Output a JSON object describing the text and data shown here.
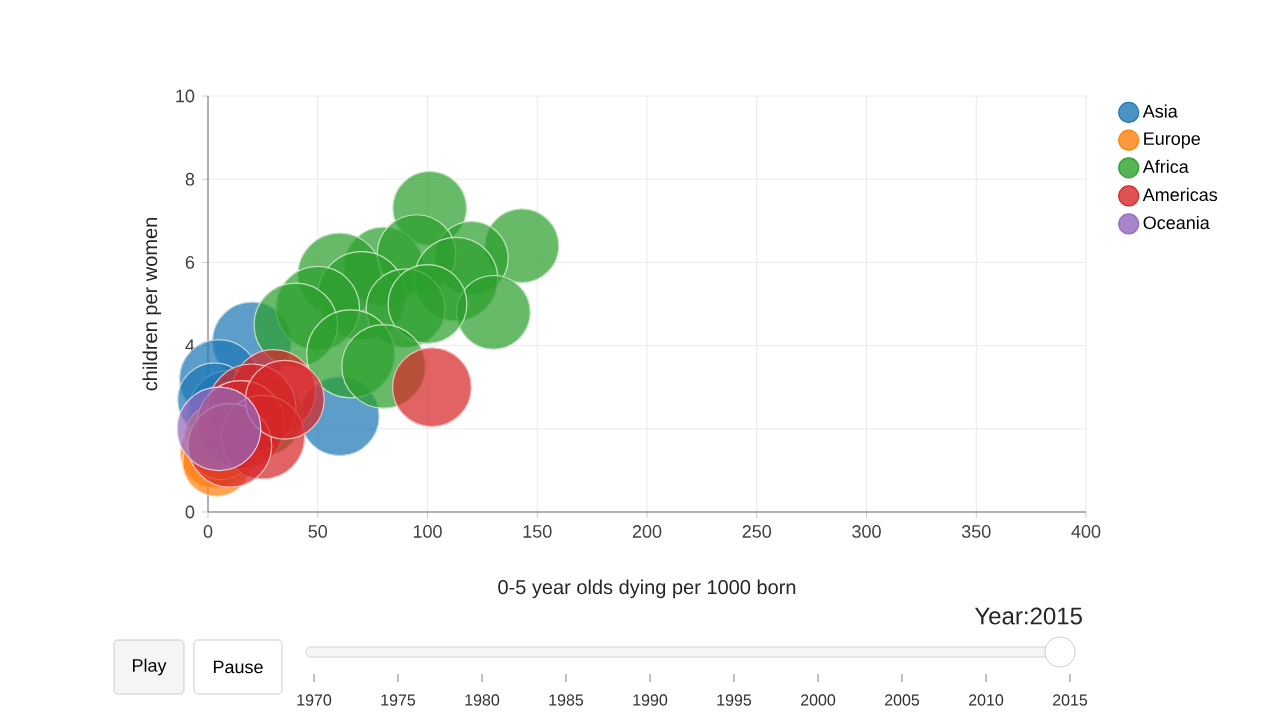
{
  "chart_data": {
    "type": "bubble",
    "xlabel": "0-5 year olds dying per 1000 born",
    "ylabel": "children per women",
    "xlim": [
      0,
      400
    ],
    "xticks": [
      0,
      50,
      100,
      150,
      200,
      250,
      300,
      350,
      400
    ],
    "ylim": [
      0,
      10
    ],
    "yticks": [
      0,
      2,
      4,
      6,
      8,
      10
    ],
    "grid": true,
    "legend": "top right",
    "marker": "circle",
    "series": [
      {
        "name": "Asia",
        "color": "#1f77b4",
        "x": [
          20,
          5,
          60,
          10,
          3
        ],
        "values": [
          4.1,
          3.2,
          2.3,
          2.4,
          2.7
        ],
        "sizes": [
          0.8,
          0.8,
          0.8,
          0.9,
          0.7
        ]
      },
      {
        "name": "Europe",
        "color": "#ff7f0e",
        "x": [
          3,
          5,
          4,
          6
        ],
        "values": [
          1.4,
          1.8,
          1.2,
          1.6
        ],
        "sizes": [
          0.6,
          0.6,
          0.6,
          0.6
        ]
      },
      {
        "name": "Africa",
        "color": "#2ca02c",
        "x": [
          101,
          143,
          120,
          80,
          60,
          95,
          113,
          70,
          50,
          90,
          130,
          100,
          40,
          65,
          80,
          25
        ],
        "values": [
          7.3,
          6.4,
          6.1,
          5.9,
          5.7,
          6.2,
          5.6,
          5.2,
          4.9,
          4.9,
          4.8,
          5.0,
          4.5,
          3.8,
          3.5,
          2.3
        ],
        "sizes": [
          0.7,
          0.7,
          0.7,
          0.8,
          0.9,
          0.8,
          0.9,
          1,
          0.9,
          0.8,
          0.7,
          0.8,
          0.9,
          1,
          0.9,
          0.8
        ]
      },
      {
        "name": "Americas",
        "color": "#d62728",
        "x": [
          102,
          30,
          20,
          15,
          25,
          10,
          35
        ],
        "values": [
          3.0,
          2.9,
          2.5,
          2.1,
          1.8,
          1.6,
          2.7
        ],
        "sizes": [
          0.8,
          0.9,
          1,
          1,
          0.9,
          0.9,
          0.8
        ]
      },
      {
        "name": "Oceania",
        "color": "#9467bd",
        "x": [
          5
        ],
        "values": [
          2.0
        ],
        "sizes": [
          0.9
        ]
      }
    ],
    "annotations": [
      "Play",
      "Pause",
      "Year:2015",
      "1970",
      "1975",
      "1980",
      "1985",
      "1990",
      "1995",
      "2000",
      "2005",
      "2010",
      "2015"
    ]
  }
}
